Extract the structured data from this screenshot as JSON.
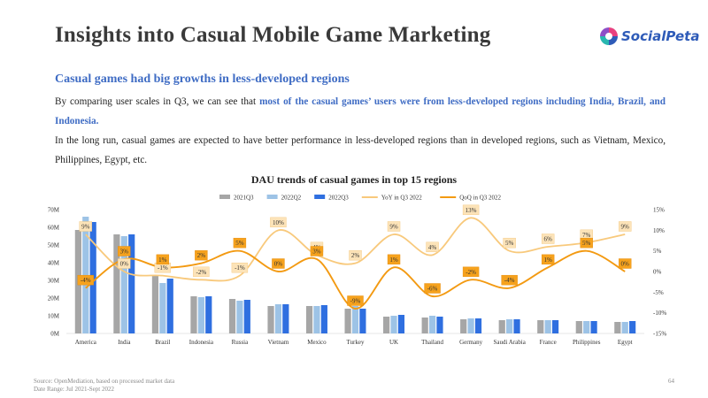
{
  "header": {
    "title": "Insights into Casual Mobile Game Marketing",
    "logo_text": "SocialPeta"
  },
  "content": {
    "subtitle": "Casual games had big growths in less-developed regions",
    "p1_before": "By comparing user scales in Q3, we can see that ",
    "p1_highlight": "most of the casual games’ users were from less-developed regions including India, Brazil, and Indonesia.",
    "p2": "In the long run, casual games are expected to have better performance in less-developed regions than in developed regions, such as Vietnam, Mexico, Philippines, Egypt, etc."
  },
  "chart_data": {
    "type": "bar",
    "title": "DAU trends of casual games in top 15 regions",
    "categories": [
      "America",
      "India",
      "Brazil",
      "Indonesia",
      "Russia",
      "Vietnam",
      "Mexico",
      "Turkey",
      "UK",
      "Thailand",
      "Germany",
      "Saudi Arabia",
      "France",
      "Philippines",
      "Egypt"
    ],
    "series": [
      {
        "name": "2021Q3",
        "type": "bar",
        "color": "#a6a6a6",
        "values": [
          58.5,
          56,
          32.5,
          21,
          19.5,
          15.5,
          15.5,
          14,
          9.5,
          9,
          8,
          7.5,
          7.5,
          7,
          6.5
        ]
      },
      {
        "name": "2022Q2",
        "type": "bar",
        "color": "#9dc3e6",
        "values": [
          66,
          55,
          28.5,
          20.5,
          18.5,
          16.5,
          15.5,
          15.5,
          10,
          10,
          8.5,
          8,
          7.5,
          7,
          6.5
        ]
      },
      {
        "name": "2022Q3",
        "type": "bar",
        "color": "#2f6fe0",
        "values": [
          63,
          56,
          31,
          21,
          19,
          16.5,
          16,
          14,
          10.5,
          9.5,
          8.5,
          8,
          7.5,
          7,
          7
        ]
      },
      {
        "name": "YoY in Q3 2022",
        "type": "line",
        "axis": "right",
        "color": "#f8c97c",
        "values": [
          9,
          0,
          -1,
          -2,
          -1,
          10,
          4,
          2,
          9,
          4,
          13,
          5,
          6,
          7,
          9
        ],
        "labels": [
          "9%",
          "0%",
          "-1%",
          "-2%",
          "-1%",
          "10%",
          "4%",
          "2%",
          "9%",
          "4%",
          "13%",
          "5%",
          "6%",
          "7%",
          "9%"
        ]
      },
      {
        "name": "QoQ in Q3 2022",
        "type": "line",
        "axis": "right",
        "color": "#f39a12",
        "values": [
          -4,
          3,
          1,
          2,
          5,
          0,
          3,
          -9,
          1,
          -6,
          -2,
          -4,
          1,
          5,
          0
        ],
        "labels": [
          "-4%",
          "3%",
          "1%",
          "2%",
          "5%",
          "0%",
          "3%",
          "-9%",
          "1%",
          "-6%",
          "-2%",
          "-4%",
          "1%",
          "5%",
          "0%"
        ]
      }
    ],
    "y_left": {
      "min": 0,
      "max": 70,
      "step": 10,
      "tick_labels": [
        "0M",
        "10M",
        "20M",
        "30M",
        "40M",
        "50M",
        "60M",
        "70M"
      ]
    },
    "y_right": {
      "min": -15,
      "max": 15,
      "step": 5,
      "tick_labels": [
        "-15%",
        "-10%",
        "-5%",
        "0%",
        "5%",
        "10%",
        "15%"
      ]
    },
    "legend": "top-center",
    "grid": false
  },
  "footer": {
    "source": "Source: OpenMediation, based on processed market data",
    "date_range": "Date Range: Jul 2021-Sept 2022",
    "page": "64"
  }
}
